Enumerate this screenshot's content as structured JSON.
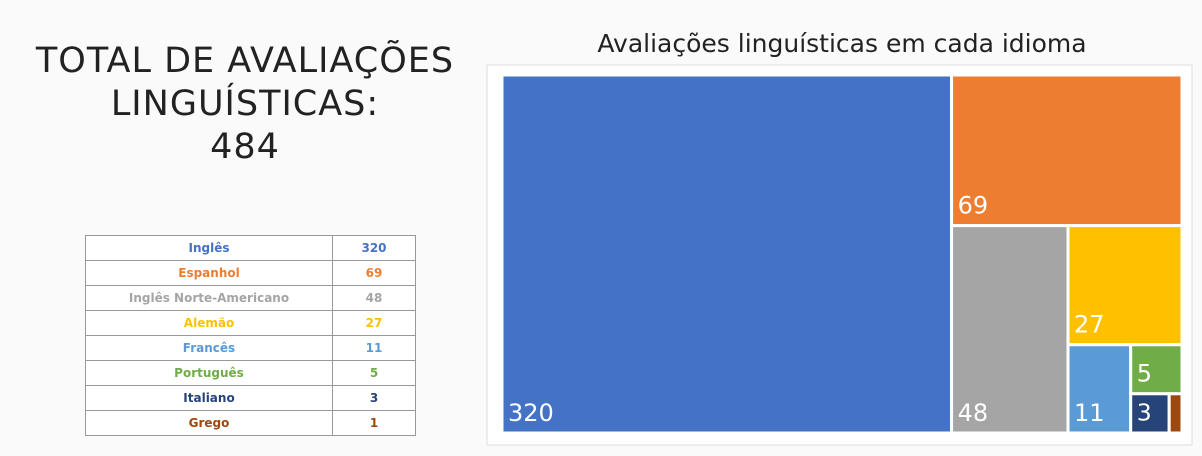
{
  "total_label": "TOTAL DE AVALIAÇÕES LINGUÍSTICAS:",
  "total_value": 484,
  "chart_data": {
    "type": "treemap",
    "title": "Avaliações linguísticas em cada idioma",
    "categories": [
      "Inglês",
      "Espanhol",
      "Inglês Norte-Americano",
      "Alemão",
      "Francês",
      "Português",
      "Italiano",
      "Grego"
    ],
    "values": [
      320,
      69,
      48,
      27,
      11,
      5,
      3,
      1
    ],
    "colors": [
      "#4472c4",
      "#ed7d31",
      "#a5a5a5",
      "#ffc000",
      "#5b9bd5",
      "#70ad47",
      "#264478",
      "#9e480e"
    ]
  }
}
